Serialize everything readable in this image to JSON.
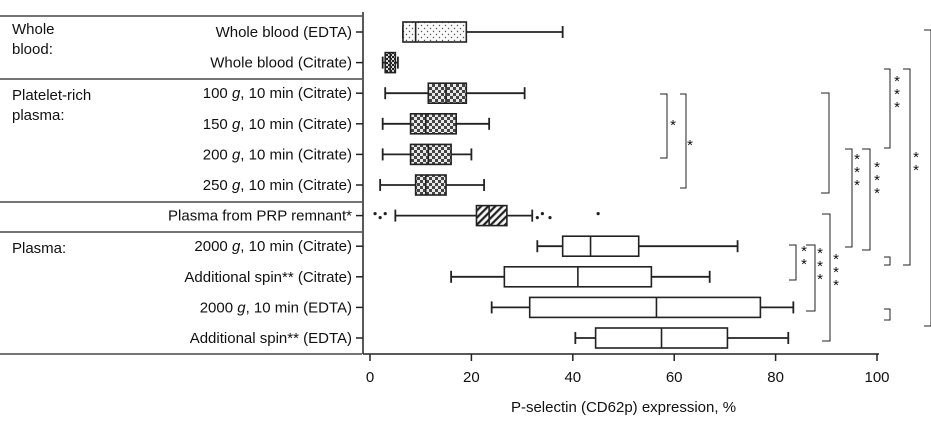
{
  "chart_data": {
    "type": "boxplot",
    "orientation": "horizontal",
    "xlabel": "P-selectin (CD62p) expression, %",
    "xlim": [
      0,
      100
    ],
    "xticks": [
      0,
      20,
      40,
      60,
      80,
      100
    ],
    "groups": [
      {
        "label": "Whole\nblood:"
      },
      {
        "label": "Platelet-rich\nplasma:"
      },
      {
        "label": "Plasma:"
      }
    ],
    "categories": [
      "Whole blood (EDTA)",
      "Whole blood (Citrate)",
      "100 g, 10 min (Citrate)",
      "150 g, 10 min (Citrate)",
      "200 g, 10 min (Citrate)",
      "250 g, 10 min (Citrate)",
      "Plasma from PRP remnant*",
      "2000 g, 10 min (Citrate)",
      "Additional spin** (Citrate)",
      "2000 g, 10 min (EDTA)",
      "Additional spin** (EDTA)"
    ],
    "boxes": [
      {
        "min": 6.5,
        "q1": 6.5,
        "median": 9,
        "q3": 19,
        "max": 38,
        "fill": "dotted",
        "outliers": []
      },
      {
        "min": 2.5,
        "q1": 3,
        "median": 4,
        "q3": 5,
        "max": 5.5,
        "fill": "hatch-fine",
        "outliers": []
      },
      {
        "min": 3,
        "q1": 11.5,
        "median": 15,
        "q3": 19,
        "max": 30.5,
        "fill": "crosshatch",
        "outliers": []
      },
      {
        "min": 2.5,
        "q1": 8,
        "median": 11,
        "q3": 17,
        "max": 23.5,
        "fill": "crosshatch",
        "outliers": []
      },
      {
        "min": 2.5,
        "q1": 8,
        "median": 11.5,
        "q3": 16,
        "max": 20,
        "fill": "crosshatch",
        "outliers": []
      },
      {
        "min": 2,
        "q1": 9,
        "median": 11,
        "q3": 15,
        "max": 22.5,
        "fill": "crosshatch",
        "outliers": []
      },
      {
        "min": 5,
        "q1": 21,
        "median": 23.5,
        "q3": 27,
        "max": 32,
        "fill": "diagonal",
        "outliers": [
          1,
          2,
          3,
          33,
          34,
          35.5,
          45
        ]
      },
      {
        "min": 33,
        "q1": 38,
        "median": 43.5,
        "q3": 53,
        "max": 72.5,
        "fill": "none",
        "outliers": []
      },
      {
        "min": 16,
        "q1": 26.5,
        "median": 41,
        "q3": 55.5,
        "max": 67,
        "fill": "none",
        "outliers": []
      },
      {
        "min": 24,
        "q1": 31.5,
        "median": 56.5,
        "q3": 77,
        "max": 83.5,
        "fill": "none",
        "outliers": []
      },
      {
        "min": 40.5,
        "q1": 44.5,
        "median": 57.5,
        "q3": 70.5,
        "max": 82.5,
        "fill": "none",
        "outliers": []
      }
    ],
    "significance_marks": [
      "*",
      "*",
      "* *",
      "* * *",
      "* * *",
      "* * *",
      "* * *",
      "* * *",
      "* *"
    ]
  }
}
